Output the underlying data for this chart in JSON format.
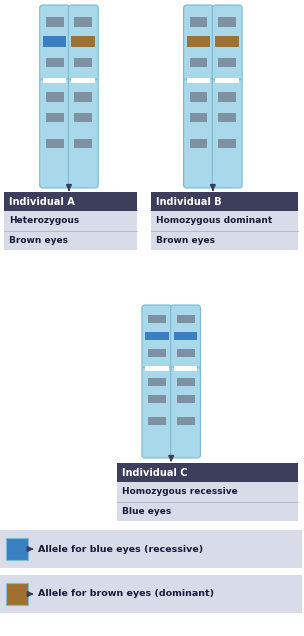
{
  "bg_color": "#ffffff",
  "chr_body_color": "#a8d8ea",
  "chr_edge_color": "#7bbbd4",
  "chr_band_dark": "#7a8a99",
  "chr_band_light": "#9aaabb",
  "blue_allele_color": "#3a7fc1",
  "brown_allele_color": "#a07030",
  "label_header_color": "#3d3d5c",
  "label_body_color": "#d8dce8",
  "label_divider_color": "#b0b4c8",
  "text_header_color": "#ffffff",
  "text_body_color": "#1a1a3a",
  "arrow_color": "#3d3d5c",
  "title_A": "Individual A",
  "title_B": "Individual B",
  "title_C": "Individual C",
  "sub_A1": "Heterozygous",
  "sub_A2": "Brown eyes",
  "sub_B1": "Homozygous dominant",
  "sub_B2": "Brown eyes",
  "sub_C1": "Homozygous recessive",
  "sub_C2": "Blue eyes",
  "legend_blue": "Allele for blue eyes (recessive)",
  "legend_brown": "Allele for brown eyes (dominant)"
}
